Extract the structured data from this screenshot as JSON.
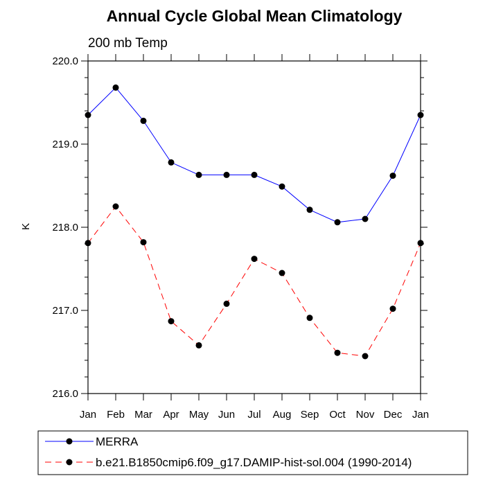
{
  "chart_data": {
    "type": "line",
    "title": "Annual Cycle Global Mean Climatology",
    "subtitle": "200 mb Temp",
    "xlabel": "",
    "ylabel": "K",
    "categories": [
      "Jan",
      "Feb",
      "Mar",
      "Apr",
      "May",
      "Jun",
      "Jul",
      "Aug",
      "Sep",
      "Oct",
      "Nov",
      "Dec",
      "Jan"
    ],
    "ylim": [
      216.0,
      220.0
    ],
    "yticks": [
      216.0,
      217.0,
      218.0,
      219.0,
      220.0
    ],
    "ytick_labels": [
      "216.0",
      "217.0",
      "218.0",
      "219.0",
      "220.0"
    ],
    "grid": false,
    "legend_position": "bottom",
    "series": [
      {
        "name": "MERRA",
        "color": "#0000ff",
        "line_style": "solid",
        "marker": "filled-circle",
        "values": [
          219.35,
          219.68,
          219.28,
          218.78,
          218.63,
          218.63,
          218.63,
          218.49,
          218.21,
          218.06,
          218.1,
          218.62,
          219.35
        ]
      },
      {
        "name": "b.e21.B1850cmip6.f09_g17.DAMIP-hist-sol.004 (1990-2014)",
        "color": "#ff0000",
        "line_style": "dashed",
        "marker": "filled-circle",
        "values": [
          217.81,
          218.25,
          217.82,
          216.87,
          216.58,
          217.08,
          217.62,
          217.45,
          216.91,
          216.49,
          216.45,
          217.02,
          217.81
        ]
      }
    ]
  }
}
